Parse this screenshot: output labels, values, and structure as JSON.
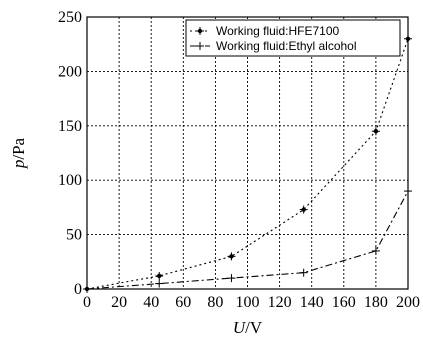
{
  "chart_data": {
    "type": "line",
    "xlabel_var": "U",
    "xlabel_unit": "/V",
    "ylabel_var": "p",
    "ylabel_unit": "/Pa",
    "xlim": [
      0,
      200
    ],
    "ylim": [
      0,
      250
    ],
    "x_ticks": [
      0,
      20,
      40,
      60,
      80,
      100,
      120,
      140,
      160,
      180,
      200
    ],
    "x_tick_labels": [
      "0",
      "20",
      "40",
      "60",
      "80",
      "100",
      "120",
      "140",
      "160",
      "180",
      "200"
    ],
    "y_ticks": [
      0,
      50,
      100,
      150,
      200,
      250
    ],
    "y_tick_labels": [
      "0",
      "50",
      "100",
      "150",
      "200",
      "250"
    ],
    "grid": true,
    "legend_position": "top-right",
    "series": [
      {
        "name": "Working fluid:HFE7100",
        "line_style": "dotted",
        "color": "#000000",
        "x": [
          0,
          45,
          90,
          135,
          180,
          200
        ],
        "y": [
          0,
          12,
          30,
          73,
          145,
          230
        ]
      },
      {
        "name": "Working fluid:Ethyl alcohol",
        "line_style": "dash-dot",
        "color": "#000000",
        "x": [
          0,
          45,
          90,
          135,
          180,
          200
        ],
        "y": [
          0,
          5,
          10,
          15,
          35,
          90
        ]
      }
    ]
  }
}
